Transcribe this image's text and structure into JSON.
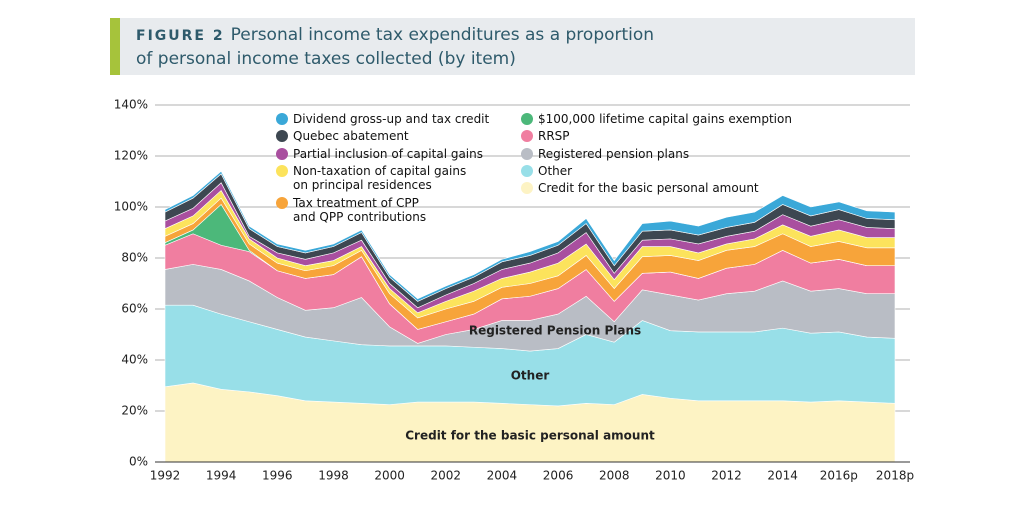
{
  "chart_data": {
    "type": "stacked_area",
    "figure_label": "FIGURE 2",
    "title": [
      "Personal income tax expenditures as a proportion",
      "of personal income taxes collected (by item)"
    ],
    "categories": [
      "1992",
      null,
      "1994",
      null,
      "1996",
      null,
      "1998",
      null,
      "2000",
      null,
      "2002",
      null,
      "2004",
      null,
      "2006",
      null,
      "2008",
      null,
      "2010",
      null,
      "2012",
      null,
      "2014",
      null,
      "2016p",
      null,
      "2018p"
    ],
    "ylim": [
      0,
      140
    ],
    "yticks": [
      {
        "value": 0,
        "label": "0%"
      },
      {
        "value": 20,
        "label": "20%"
      },
      {
        "value": 40,
        "label": "40%"
      },
      {
        "value": 60,
        "label": "60%"
      },
      {
        "value": 80,
        "label": "80%"
      },
      {
        "value": 100,
        "label": "100%"
      },
      {
        "value": 120,
        "label": "120%"
      },
      {
        "value": 140,
        "label": "140%"
      }
    ],
    "grid": true,
    "series": [
      {
        "name": "Credit for the basic personal amount",
        "color": "#fdf3c4",
        "values": [
          29.5,
          31,
          28.5,
          27.5,
          26,
          24,
          23.5,
          23,
          22.5,
          23.5,
          23.5,
          23.5,
          23,
          22.5,
          22,
          23,
          22.5,
          26.5,
          25,
          24,
          24,
          24,
          24,
          23.5,
          24,
          23.5,
          23
        ]
      },
      {
        "name": "Other",
        "color": "#98dfe8",
        "values": [
          32,
          30.5,
          29.5,
          27.5,
          26,
          25,
          24,
          23,
          23,
          22,
          22,
          21.5,
          21.5,
          21,
          22.5,
          27,
          24.5,
          29,
          26.5,
          27,
          27,
          27,
          28.5,
          27,
          27,
          25.5,
          25.5
        ]
      },
      {
        "name": "Registered pension plans",
        "color": "#b9bdc5",
        "values": [
          14,
          16,
          17.5,
          16,
          12.5,
          10.5,
          13,
          18.5,
          7.5,
          1,
          4.5,
          7,
          11,
          12,
          13.5,
          15,
          8,
          12,
          14,
          12.5,
          15,
          16,
          18.5,
          16.5,
          17,
          17,
          17.5
        ]
      },
      {
        "name": "RRSP",
        "color": "#f07ea0",
        "values": [
          9.5,
          12,
          9.5,
          11.5,
          10.5,
          12.5,
          13,
          16,
          9,
          5.5,
          5,
          6,
          8.5,
          9.5,
          10,
          10.5,
          8,
          6.5,
          9,
          8.5,
          10,
          10.5,
          12,
          11,
          11.5,
          11,
          11
        ]
      },
      {
        "name": "$100,000 lifetime capital gains exemption",
        "color": "#4cb87a",
        "values": [
          1,
          1.5,
          16,
          0.5,
          0,
          0,
          0,
          0,
          0,
          0,
          0,
          0,
          0,
          0,
          0,
          0,
          0,
          0,
          0,
          0,
          0,
          0,
          0,
          0,
          0,
          0,
          0
        ]
      },
      {
        "name": "Tax treatment of CPP\nand QPP contributions",
        "color": "#f7a43a",
        "values": [
          2.5,
          2.5,
          2.5,
          2.5,
          3,
          3,
          3.5,
          2.5,
          4,
          4.5,
          5,
          5,
          4.5,
          5,
          5,
          5.5,
          5,
          6.5,
          6.5,
          7,
          7,
          7,
          6.5,
          6.5,
          7,
          7,
          7
        ]
      },
      {
        "name": "Non-taxation of capital gains\non principal residences",
        "color": "#fce35c",
        "values": [
          3,
          3,
          3,
          2,
          2,
          2,
          2,
          1.5,
          2,
          2,
          3,
          4,
          3.5,
          4.5,
          5,
          4.5,
          3.5,
          4,
          3.5,
          3,
          2.5,
          3,
          3.5,
          4,
          4.5,
          4,
          4
        ]
      },
      {
        "name": "Partial inclusion of capital gains",
        "color": "#a94f9f",
        "values": [
          3,
          3,
          3,
          1,
          2,
          2.5,
          3,
          2.5,
          2,
          2,
          2.5,
          3,
          3.5,
          3.5,
          4,
          4.5,
          2.5,
          2.5,
          3,
          3.5,
          3,
          3,
          4,
          4,
          4,
          4,
          3.5
        ]
      },
      {
        "name": "Quebec abatement",
        "color": "#3d4751",
        "values": [
          3.5,
          4,
          3.5,
          3,
          2.5,
          2.5,
          2.5,
          3,
          2.5,
          2.5,
          2.5,
          2.5,
          3,
          3,
          3,
          3.5,
          3,
          3.5,
          3.5,
          3.5,
          3.5,
          3.5,
          4,
          4,
          4,
          3.5,
          3.5
        ]
      },
      {
        "name": "Dividend gross-up and tax credit",
        "color": "#3aa8d8",
        "values": [
          1,
          1,
          1,
          1,
          1,
          1,
          1,
          1,
          1,
          1,
          1,
          1,
          1,
          1.5,
          1.5,
          2,
          2,
          3,
          3.5,
          3.5,
          4,
          4,
          3.5,
          3.5,
          3,
          3,
          3
        ]
      }
    ],
    "annotations": [
      "Registered Pension Plans",
      "Other",
      "Credit for the basic personal amount"
    ]
  }
}
